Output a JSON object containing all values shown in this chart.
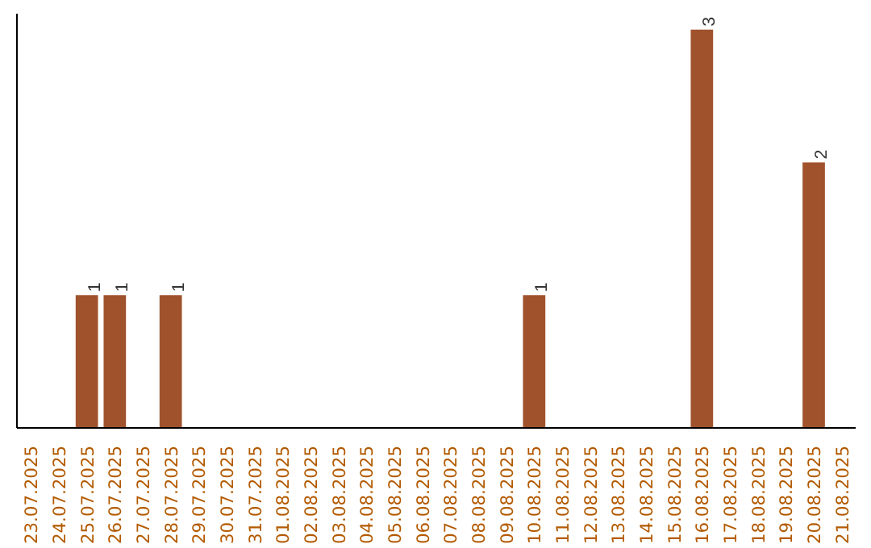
{
  "chart_data": {
    "type": "bar",
    "categories": [
      "23.07.2025",
      "24.07.2025",
      "25.07.2025",
      "26.07.2025",
      "27.07.2025",
      "28.07.2025",
      "29.07.2025",
      "30.07.2025",
      "31.07.2025",
      "01.08.2025",
      "02.08.2025",
      "03.08.2025",
      "04.08.2025",
      "05.08.2025",
      "06.08.2025",
      "07.08.2025",
      "08.08.2025",
      "09.08.2025",
      "10.08.2025",
      "11.08.2025",
      "12.08.2025",
      "13.08.2025",
      "14.08.2025",
      "15.08.2025",
      "16.08.2025",
      "17.08.2025",
      "18.08.2025",
      "19.08.2025",
      "20.08.2025",
      "21.08.2025"
    ],
    "values": [
      0,
      0,
      1,
      1,
      0,
      1,
      0,
      0,
      0,
      0,
      0,
      0,
      0,
      0,
      0,
      0,
      0,
      0,
      1,
      0,
      0,
      0,
      0,
      0,
      3,
      0,
      0,
      0,
      2,
      0
    ],
    "value_labels": [
      null,
      null,
      "1",
      "1",
      null,
      "1",
      null,
      null,
      null,
      null,
      null,
      null,
      null,
      null,
      null,
      null,
      null,
      null,
      "1",
      null,
      null,
      null,
      null,
      null,
      "3",
      null,
      null,
      null,
      "2",
      null
    ],
    "color": "#a0522d",
    "grid": false,
    "tick_labels": "x"
  }
}
